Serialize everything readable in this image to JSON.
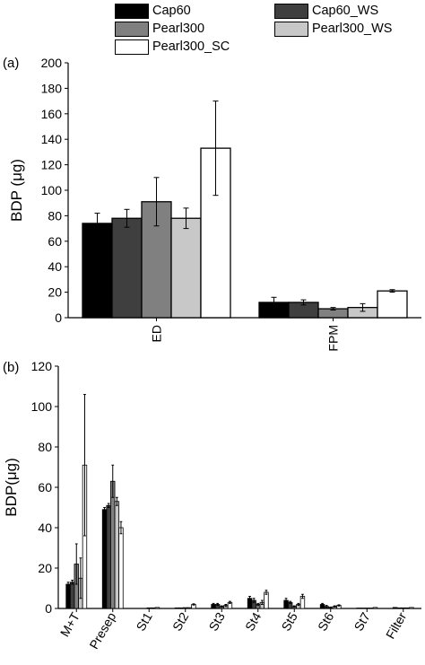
{
  "legend": {
    "items": [
      {
        "label": "Cap60",
        "color": "#000000"
      },
      {
        "label": "Cap60_WS",
        "color": "#3f3f3f"
      },
      {
        "label": "Pearl300",
        "color": "#808080"
      },
      {
        "label": "Pearl300_WS",
        "color": "#c8c8c8"
      },
      {
        "label": "Pearl300_SC",
        "color": "#ffffff"
      }
    ]
  },
  "chart_data": [
    {
      "type": "bar",
      "panel_label": "(a)",
      "ylabel": "BDP (μg)",
      "xlabel": "",
      "categories": [
        "ED",
        "FPM"
      ],
      "ylim": [
        0,
        200
      ],
      "yticks": [
        0,
        20,
        40,
        60,
        80,
        100,
        120,
        140,
        160,
        180,
        200
      ],
      "xtick_rotation": "vertical",
      "series": [
        {
          "name": "Cap60",
          "color": "#000000",
          "values": [
            74,
            12
          ],
          "errors": [
            8,
            4
          ]
        },
        {
          "name": "Cap60_WS",
          "color": "#3f3f3f",
          "values": [
            78,
            12
          ],
          "errors": [
            7,
            2
          ]
        },
        {
          "name": "Pearl300",
          "color": "#808080",
          "values": [
            91,
            7
          ],
          "errors": [
            19,
            1
          ]
        },
        {
          "name": "Pearl300_WS",
          "color": "#c8c8c8",
          "values": [
            78,
            8
          ],
          "errors": [
            8,
            3
          ]
        },
        {
          "name": "Pearl300_SC",
          "color": "#ffffff",
          "values": [
            133,
            21
          ],
          "errors": [
            37,
            1
          ]
        }
      ]
    },
    {
      "type": "bar",
      "panel_label": "(b)",
      "ylabel": "BDP(μg)",
      "xlabel": "",
      "categories": [
        "M+T",
        "Presep",
        "St1",
        "St2",
        "St3",
        "St4",
        "St5",
        "St6",
        "St7",
        "Filter"
      ],
      "ylim": [
        0,
        120
      ],
      "yticks": [
        0,
        20,
        40,
        60,
        80,
        100,
        120
      ],
      "xtick_rotation": "diagonal",
      "series": [
        {
          "name": "Cap60",
          "color": "#000000",
          "values": [
            12,
            49,
            0,
            0.3,
            2,
            5,
            4,
            2,
            0.2,
            0.5
          ],
          "errors": [
            1,
            1,
            0,
            0,
            0.5,
            1,
            1,
            0.5,
            0,
            0
          ]
        },
        {
          "name": "Cap60_WS",
          "color": "#3f3f3f",
          "values": [
            13,
            51,
            0,
            0.3,
            2,
            4,
            3,
            1,
            0.2,
            0.3
          ],
          "errors": [
            1,
            1,
            0,
            0,
            0.5,
            1,
            0.5,
            0.5,
            0,
            0
          ]
        },
        {
          "name": "Pearl300",
          "color": "#808080",
          "values": [
            22,
            63,
            0.3,
            0.4,
            1,
            2,
            1,
            0.5,
            0.2,
            0.3
          ],
          "errors": [
            10,
            8,
            0,
            0,
            0.3,
            0.5,
            0.3,
            0.2,
            0,
            0
          ]
        },
        {
          "name": "Pearl300_WS",
          "color": "#c8c8c8",
          "values": [
            15,
            53,
            0.3,
            0.4,
            1.5,
            3,
            2,
            1,
            0.2,
            0.3
          ],
          "errors": [
            10,
            2,
            0,
            0,
            0.5,
            1,
            0.5,
            0.3,
            0,
            0
          ]
        },
        {
          "name": "Pearl300_SC",
          "color": "#ffffff",
          "values": [
            71,
            40,
            0.5,
            2,
            3,
            8,
            6,
            1.5,
            0.5,
            0.5
          ],
          "errors": [
            35,
            3,
            0,
            0.3,
            0.5,
            1,
            1,
            0.3,
            0,
            0
          ]
        }
      ]
    }
  ]
}
